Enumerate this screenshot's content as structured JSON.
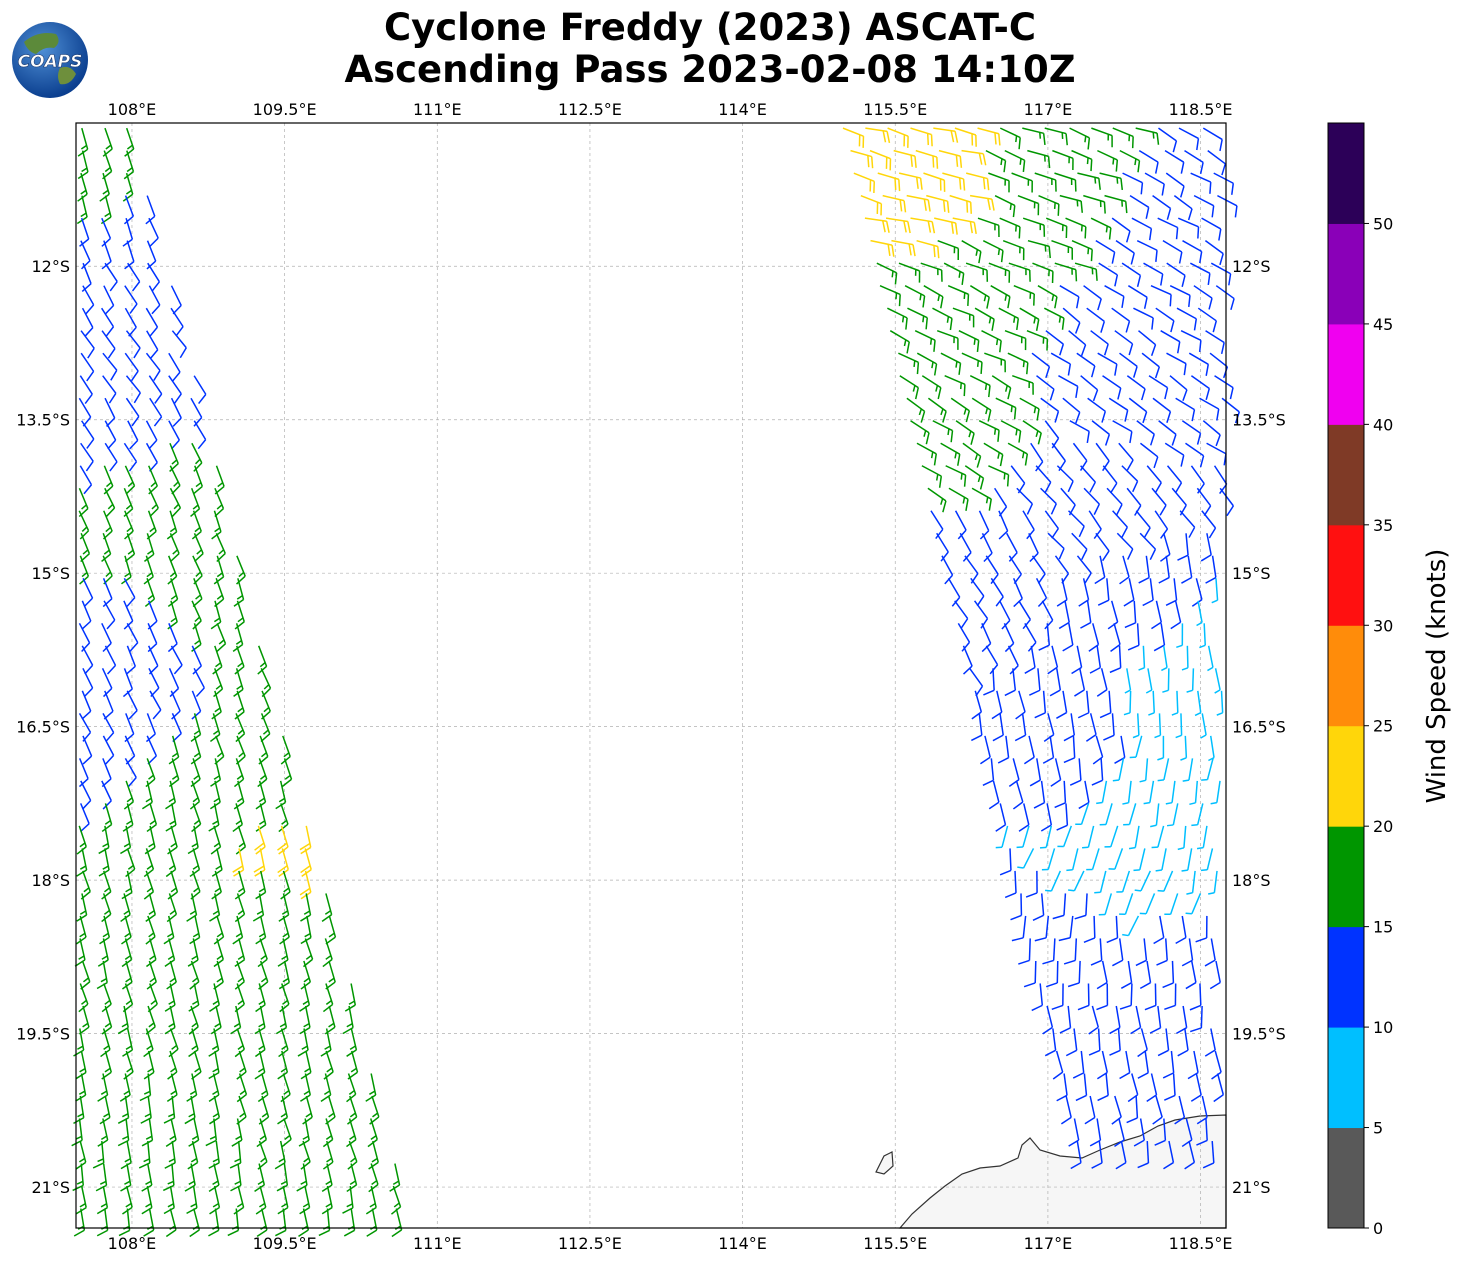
{
  "title": {
    "line1": "Cyclone Freddy (2023) ASCAT-C",
    "line2": "Ascending Pass 2023-02-08 14:10Z"
  },
  "logo": {
    "text": "COAPS",
    "icon": "globe-icon"
  },
  "map": {
    "lon_range": [
      107.45,
      118.75
    ],
    "lat_range": [
      -21.4,
      -10.6
    ],
    "lon_ticks": [
      "108°E",
      "109.5°E",
      "111°E",
      "112.5°E",
      "114°E",
      "115.5°E",
      "117°E",
      "118.5°E"
    ],
    "lat_ticks": [
      "12°S",
      "13.5°S",
      "15°S",
      "16.5°S",
      "18°S",
      "19.5°S",
      "21°S"
    ],
    "lon_tick_values": [
      108,
      109.5,
      111,
      112.5,
      114,
      115.5,
      117,
      118.5
    ],
    "lat_tick_values": [
      -12,
      -13.5,
      -15,
      -16.5,
      -18,
      -19.5,
      -21
    ],
    "gridlines": true,
    "land_feature": "northwest-australia-coastline"
  },
  "colorbar": {
    "label": "Wind Speed (knots)",
    "tick_labels": [
      "0",
      "5",
      "10",
      "15",
      "20",
      "25",
      "30",
      "35",
      "40",
      "45",
      "50"
    ],
    "bins": [
      {
        "range": "0-5",
        "color": "#595959"
      },
      {
        "range": "5-10",
        "color": "#00bfff"
      },
      {
        "range": "10-15",
        "color": "#0033ff"
      },
      {
        "range": "15-20",
        "color": "#009600"
      },
      {
        "range": "20-25",
        "color": "#ffd60a"
      },
      {
        "range": "25-30",
        "color": "#ff8c0a"
      },
      {
        "range": "30-35",
        "color": "#ff1010"
      },
      {
        "range": "35-40",
        "color": "#7f3a26"
      },
      {
        "range": "40-45",
        "color": "#f000f0"
      },
      {
        "range": "45-50",
        "color": "#8a00b8"
      },
      {
        "range": "50+",
        "color": "#2c0058"
      }
    ]
  },
  "wind_barbs": {
    "west_swath": [
      {
        "lat": -11.0,
        "lon": 107.8,
        "speed": 17,
        "dir": 165
      },
      {
        "lat": -11.6,
        "lon": 108.0,
        "speed": 12,
        "dir": 160
      },
      {
        "lat": -12.2,
        "lon": 108.1,
        "speed": 12,
        "dir": 150
      },
      {
        "lat": -12.8,
        "lon": 108.2,
        "speed": 12,
        "dir": 145
      },
      {
        "lat": -13.4,
        "lon": 108.3,
        "speed": 12,
        "dir": 150
      },
      {
        "lat": -14.0,
        "lon": 108.5,
        "speed": 16,
        "dir": 155
      },
      {
        "lat": -14.6,
        "lon": 108.7,
        "speed": 16,
        "dir": 160
      },
      {
        "lat": -15.2,
        "lon": 108.9,
        "speed": 17,
        "dir": 160
      },
      {
        "lat": -15.8,
        "lon": 108.3,
        "speed": 13,
        "dir": 155
      },
      {
        "lat": -16.4,
        "lon": 109.0,
        "speed": 17,
        "dir": 160
      },
      {
        "lat": -17.0,
        "lon": 109.2,
        "speed": 18,
        "dir": 165
      },
      {
        "lat": -17.6,
        "lon": 109.7,
        "speed": 21,
        "dir": 165
      },
      {
        "lat": -18.2,
        "lon": 109.5,
        "speed": 18,
        "dir": 165
      },
      {
        "lat": -18.8,
        "lon": 109.8,
        "speed": 18,
        "dir": 165
      },
      {
        "lat": -19.4,
        "lon": 108.8,
        "speed": 17,
        "dir": 165
      },
      {
        "lat": -20.0,
        "lon": 109.6,
        "speed": 17,
        "dir": 165
      },
      {
        "lat": -20.6,
        "lon": 108.4,
        "speed": 17,
        "dir": 170
      },
      {
        "lat": -21.2,
        "lon": 109.2,
        "speed": 17,
        "dir": 170
      }
    ],
    "east_swath": [
      {
        "lat": -11.0,
        "lon": 115.6,
        "speed": 21,
        "dir": 105
      },
      {
        "lat": -11.3,
        "lon": 117.0,
        "speed": 17,
        "dir": 110
      },
      {
        "lat": -11.8,
        "lon": 118.0,
        "speed": 13,
        "dir": 120
      },
      {
        "lat": -12.4,
        "lon": 116.2,
        "speed": 17,
        "dir": 115
      },
      {
        "lat": -13.0,
        "lon": 117.5,
        "speed": 13,
        "dir": 125
      },
      {
        "lat": -13.6,
        "lon": 116.0,
        "speed": 16,
        "dir": 120
      },
      {
        "lat": -14.2,
        "lon": 117.2,
        "speed": 12,
        "dir": 140
      },
      {
        "lat": -14.8,
        "lon": 116.5,
        "speed": 12,
        "dir": 150
      },
      {
        "lat": -15.4,
        "lon": 117.6,
        "speed": 12,
        "dir": 170
      },
      {
        "lat": -16.0,
        "lon": 118.2,
        "speed": 9,
        "dir": 175
      },
      {
        "lat": -16.6,
        "lon": 117.3,
        "speed": 11,
        "dir": 170
      },
      {
        "lat": -17.2,
        "lon": 118.0,
        "speed": 8,
        "dir": 190
      },
      {
        "lat": -17.8,
        "lon": 117.6,
        "speed": 8,
        "dir": 200
      },
      {
        "lat": -18.4,
        "lon": 117.2,
        "speed": 11,
        "dir": 180
      },
      {
        "lat": -19.0,
        "lon": 117.9,
        "speed": 11,
        "dir": 175
      },
      {
        "lat": -19.6,
        "lon": 117.6,
        "speed": 11,
        "dir": 170
      },
      {
        "lat": -20.2,
        "lon": 118.0,
        "speed": 12,
        "dir": 170
      }
    ]
  }
}
